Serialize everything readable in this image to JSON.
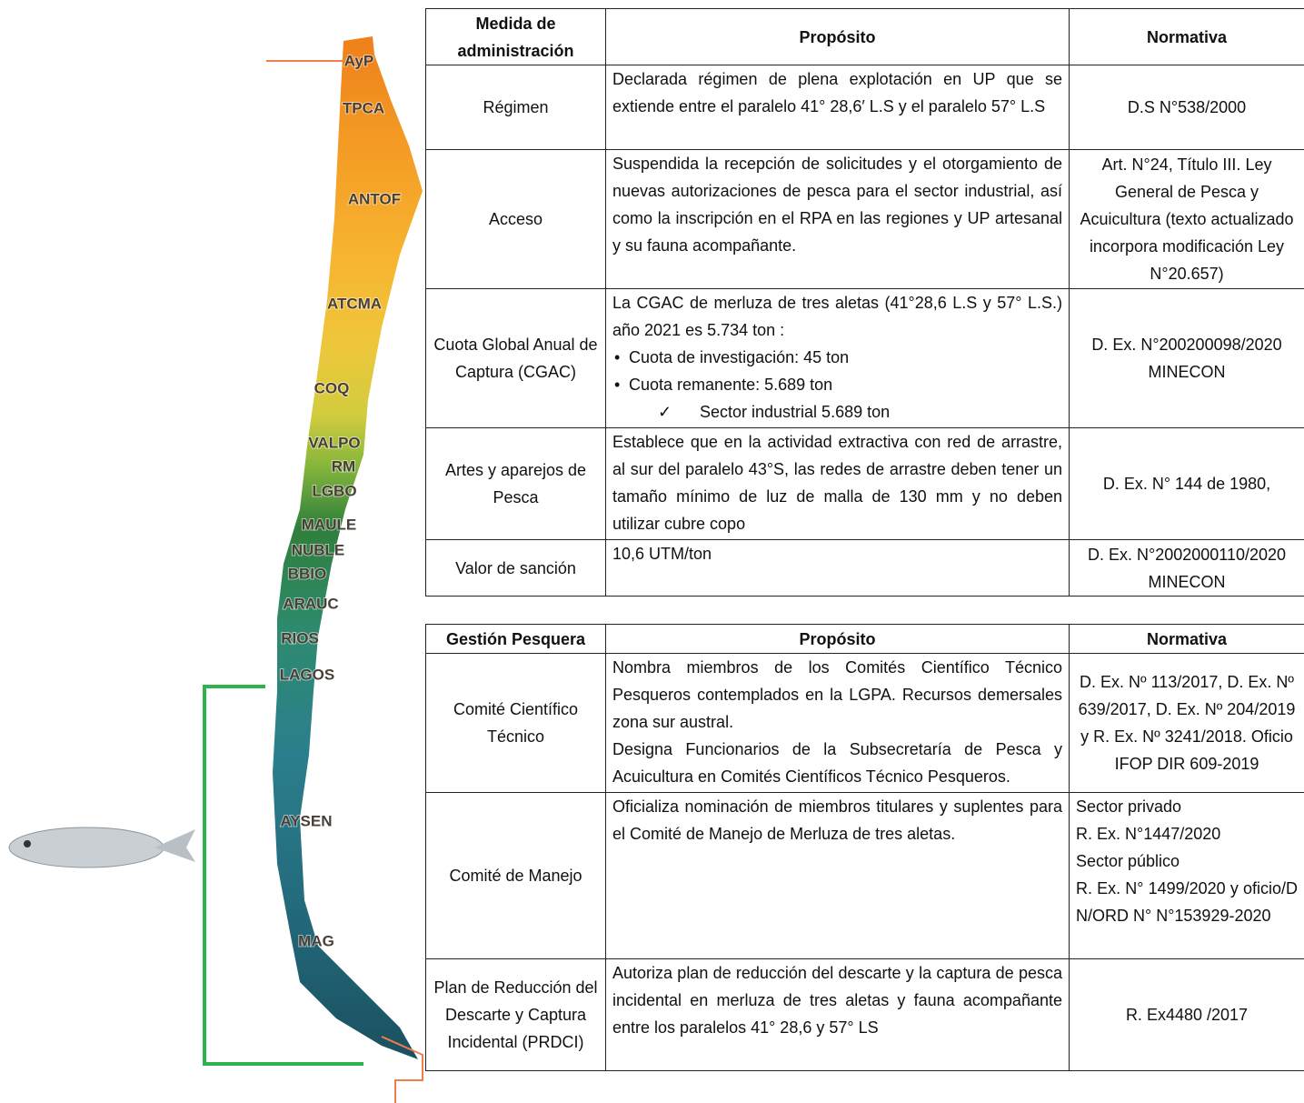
{
  "map": {
    "regions": [
      "AyP",
      "TPCA",
      "ANTOF",
      "ATCMA",
      "COQ",
      "VALPO",
      "RM",
      "LGBO",
      "MAULE",
      "NUBLE",
      "BBIO",
      "ARAUC",
      "RIOS",
      "LAGOS",
      "AYSEN",
      "MAG"
    ]
  },
  "table1": {
    "header": [
      "Medida de administración",
      "Propósito",
      "Normativa"
    ],
    "rows": [
      [
        "Régimen",
        "Declarada régimen de plena explotación en UP que se extiende entre el paralelo 41° 28,6′ L.S y el paralelo 57° L.S",
        "D.S N°538/2000"
      ],
      [
        "Acceso",
        "Suspendida la recepción de solicitudes y el otorgamiento de nuevas autorizaciones de pesca para el sector industrial, así como la inscripción en el RPA en las regiones y UP artesanal y su fauna acompañante.",
        "Art. N°24, Título III. Ley General de Pesca y Acuicultura (texto actualizado incorpora modificación Ley N°20.657)"
      ],
      [
        "Cuota Global Anual de Captura (CGAC)",
        [
          "La CGAC de merluza de tres aletas (41°28,6 L.S y 57° L.S.) año 2021 es 5.734 ton :",
          {
            "bullet": "Cuota de investigación: 45 ton"
          },
          {
            "bullet": "Cuota remanente: 5.689 ton"
          },
          {
            "check": "Sector industrial 5.689 ton"
          }
        ],
        "D. Ex. N°200200098/2020 MINECON"
      ],
      [
        "Artes y aparejos de Pesca",
        "Establece que en la actividad extractiva con red de arrastre, al sur del paralelo 43°S, las redes de arrastre deben tener un tamaño mínimo de luz de malla de 130 mm y no deben utilizar cubre copo",
        "D. Ex. N° 144 de 1980,"
      ],
      [
        "Valor de sanción",
        "10,6 UTM/ton",
        "D. Ex. N°2002000110/2020 MINECON"
      ]
    ]
  },
  "table2": {
    "header": [
      "Gestión Pesquera",
      "Propósito",
      "Normativa"
    ],
    "rows": [
      [
        "Comité Científico Técnico",
        [
          "Nombra miembros de los Comités Científico Técnico Pesqueros contemplados en la LGPA. Recursos demersales zona sur austral.",
          "Designa Funcionarios de la Subsecretaría de Pesca y Acuicultura en Comités Científicos Técnico Pesqueros."
        ],
        "D. Ex. Nº 113/2017, D. Ex. Nº 639/2017, D. Ex. Nº 204/2019 y R. Ex. Nº 3241/2018. Oficio IFOP DIR 609-2019"
      ],
      [
        "Comité de Manejo",
        "Oficializa nominación de miembros titulares y suplentes para el Comité de Manejo de Merluza de tres aletas.",
        [
          "Sector privado",
          "R. Ex. N°1447/2020",
          "Sector público",
          "R. Ex. N° 1499/2020 y oficio/D N/ORD N° N°153929-2020"
        ]
      ],
      [
        "Plan de Reducción del Descarte y Captura Incidental (PRDCI)",
        "Autoriza plan de reducción del descarte y la captura de pesca incidental en merluza de tres aletas y fauna acompañante entre los paralelos 41° 28,6 y 57° LS",
        "R. Ex4480 /2017"
      ]
    ]
  }
}
